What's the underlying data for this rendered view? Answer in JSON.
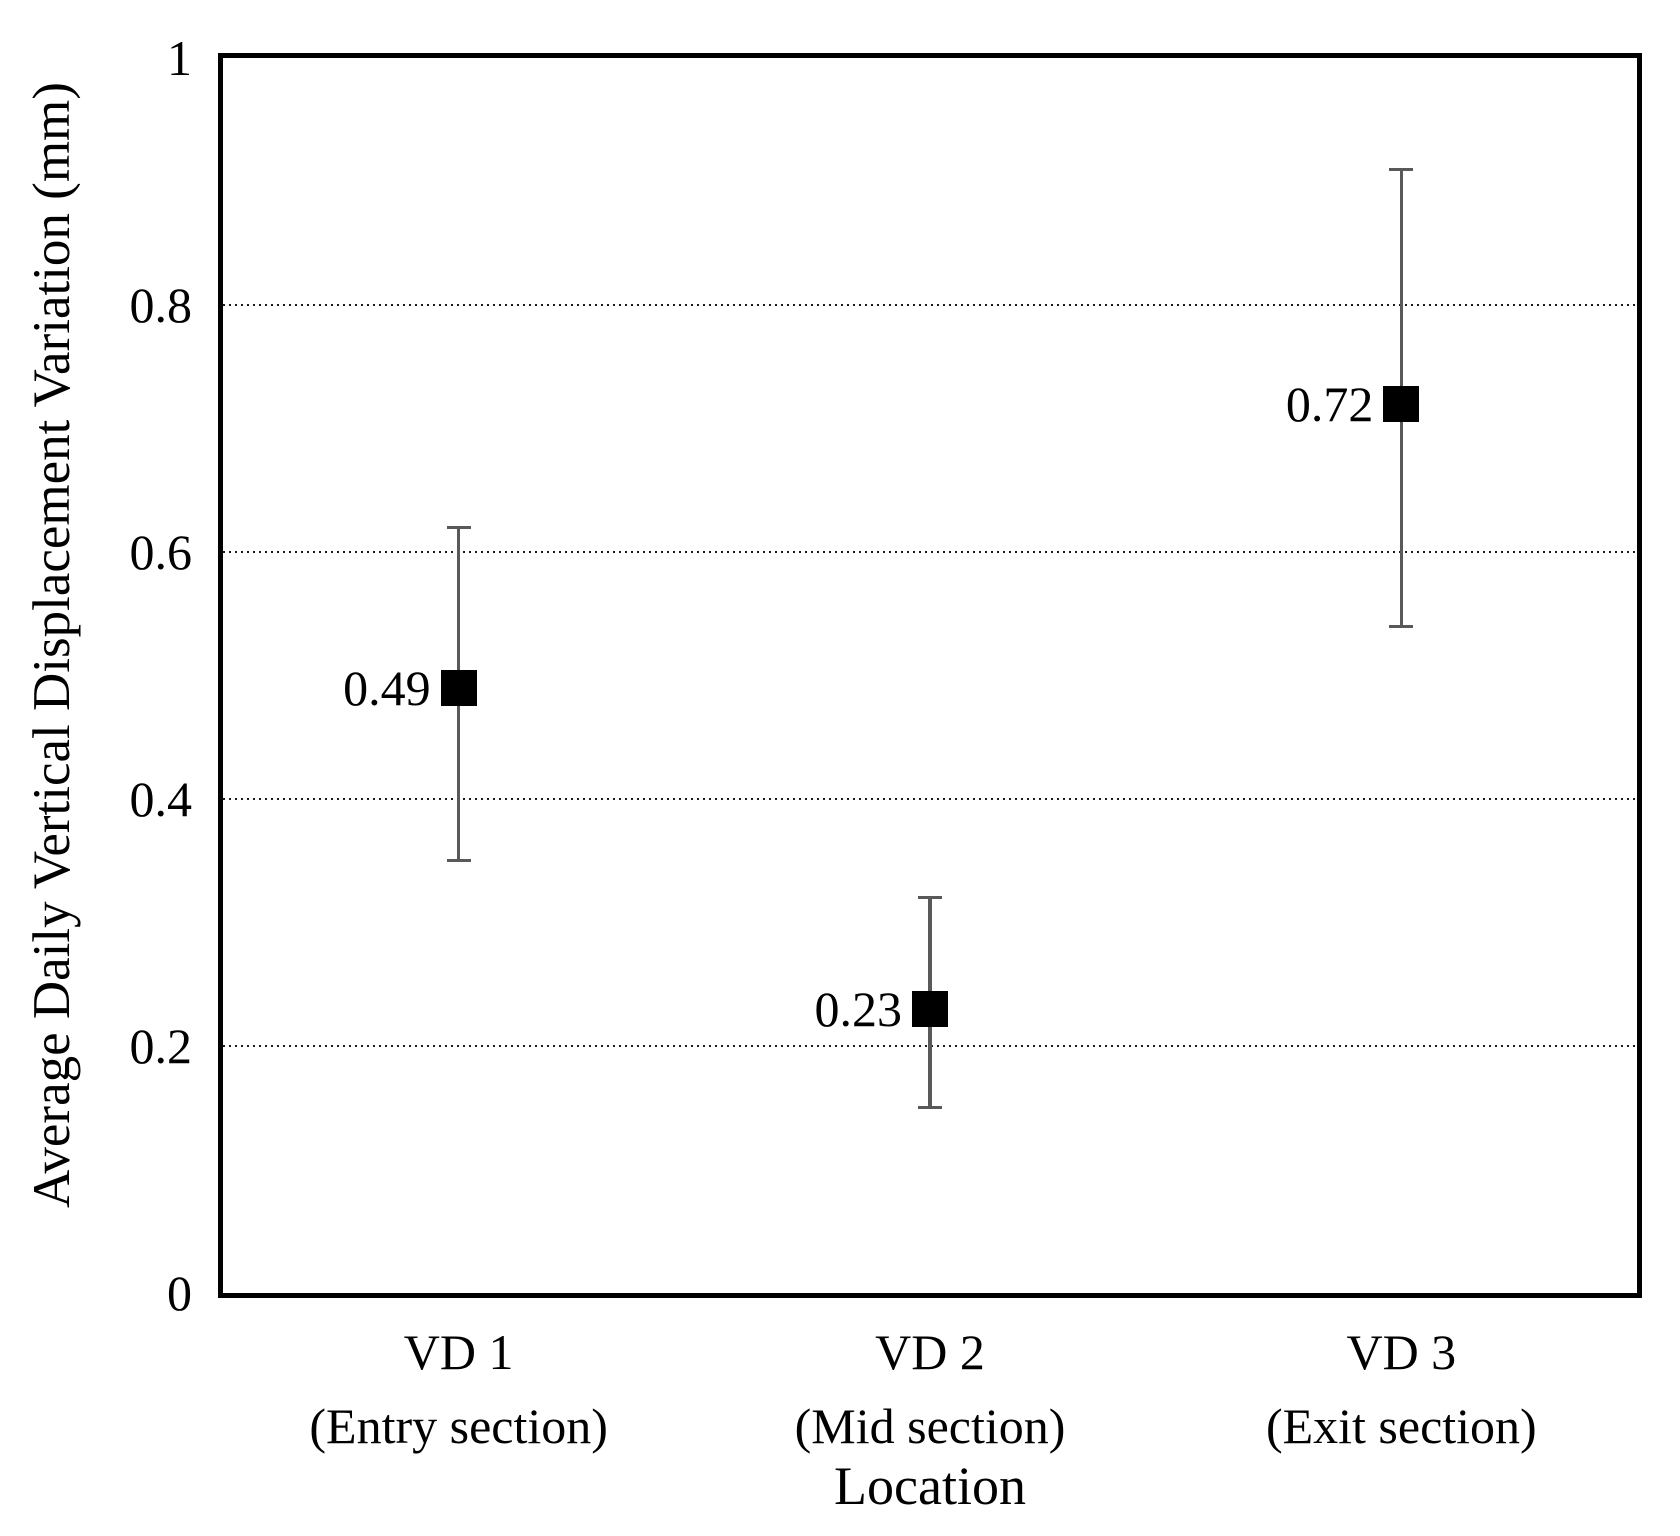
{
  "chart_data": {
    "type": "scatter",
    "title": "",
    "xlabel": "Location",
    "ylabel": "Average Daily Vertical Displacement Variation (mm)",
    "ylim": [
      0,
      1
    ],
    "legend": "none",
    "grid": "horizontal-dotted",
    "gridlines": [
      0.2,
      0.4,
      0.6,
      0.8
    ],
    "yticks": [
      {
        "label": "1",
        "value": 1.0
      },
      {
        "label": "0.8",
        "value": 0.8
      },
      {
        "label": "0.6",
        "value": 0.6
      },
      {
        "label": "0.4",
        "value": 0.4
      },
      {
        "label": "0.2",
        "value": 0.2
      },
      {
        "label": "0",
        "value": 0.0
      }
    ],
    "categories": [
      {
        "label": "VD 1",
        "sublabel": "(Entry section)"
      },
      {
        "label": "VD 2",
        "sublabel": "(Mid section)"
      },
      {
        "label": "VD 3",
        "sublabel": "(Exit section)"
      }
    ],
    "points": [
      {
        "label": "0.49",
        "value": 0.49,
        "error_high": 0.62,
        "error_low": 0.35
      },
      {
        "label": "0.23",
        "value": 0.23,
        "error_high": 0.32,
        "error_low": 0.15
      },
      {
        "label": "0.72",
        "value": 0.72,
        "error_high": 0.91,
        "error_low": 0.54
      }
    ],
    "marker": "black-square",
    "colors": {
      "marker": "#000000",
      "error_bar": "#595959",
      "gridline": "#1a1a1a",
      "frame": "#000000",
      "background": "#ffffff"
    }
  }
}
